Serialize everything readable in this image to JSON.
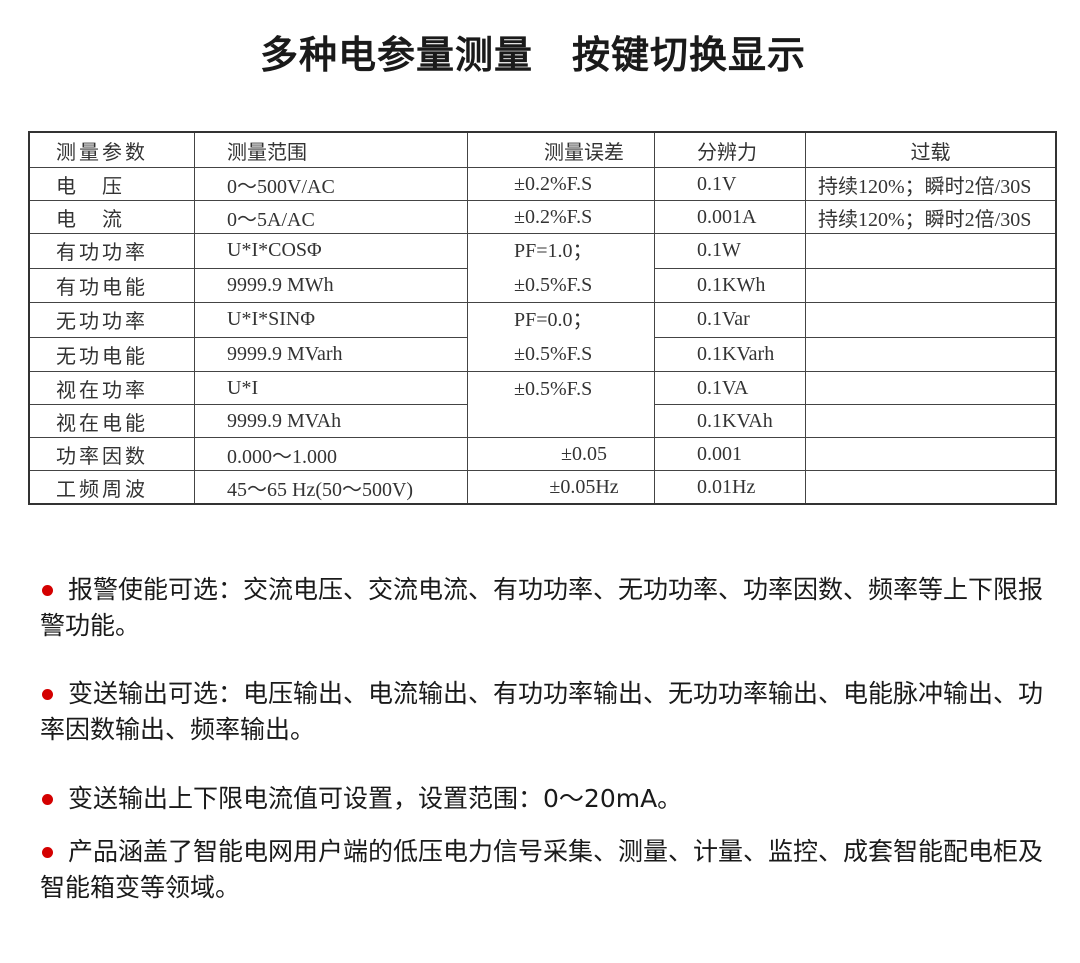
{
  "title": "多种电参量测量　按键切换显示",
  "table": {
    "headers": [
      "测量参数",
      "测量范围",
      "测量误差",
      "分辨力",
      "过载"
    ],
    "rows": [
      {
        "param": "电　压",
        "range": "0～500V/AC",
        "error": "±0.2%F.S",
        "resolution": "0.1V",
        "overload": "持续120%；瞬时2倍/30S"
      },
      {
        "param": "电　流",
        "range": "0～5A/AC",
        "error": "±0.2%F.S",
        "resolution": "0.001A",
        "overload": "持续120%；瞬时2倍/30S"
      },
      {
        "param": "有功功率",
        "range": "U*I*COSΦ",
        "error_line1": "PF=1.0；",
        "resolution": "0.1W",
        "overload": ""
      },
      {
        "param": "有功电能",
        "range": "9999.9 MWh",
        "error_line2": "±0.5%F.S",
        "resolution": "0.1KWh",
        "overload": ""
      },
      {
        "param": "无功功率",
        "range": "U*I*SINΦ",
        "error_line1": "PF=0.0；",
        "resolution": "0.1Var",
        "overload": ""
      },
      {
        "param": "无功电能",
        "range": "9999.9 MVarh",
        "error_line2": "±0.5%F.S",
        "resolution": "0.1KVarh",
        "overload": ""
      },
      {
        "param": "视在功率",
        "range": "U*I",
        "error_line1": "±0.5%F.S",
        "resolution": "0.1VA",
        "overload": ""
      },
      {
        "param": "视在电能",
        "range": "9999.9 MVAh",
        "resolution": "0.1KVAh",
        "overload": ""
      },
      {
        "param": "功率因数",
        "range": "0.000～1.000",
        "error": "±0.05",
        "resolution": "0.001",
        "overload": ""
      },
      {
        "param": "工频周波",
        "range": "45～65 Hz(50～500V)",
        "error": "±0.05Hz",
        "resolution": "0.01Hz",
        "overload": ""
      }
    ]
  },
  "bullet_color": "#d40000",
  "bullets": [
    "报警使能可选：交流电压、交流电流、有功功率、无功功率、功率因数、频率等上下限报警功能。",
    "变送输出可选：电压输出、电流输出、有功功率输出、无功功率输出、电能脉冲输出、功率因数输出、频率输出。",
    "变送输出上下限电流值可设置，设置范围：0～20mA。",
    "产品涵盖了智能电网用户端的低压电力信号采集、测量、计量、监控、成套智能配电柜及智能箱变等领域。"
  ]
}
